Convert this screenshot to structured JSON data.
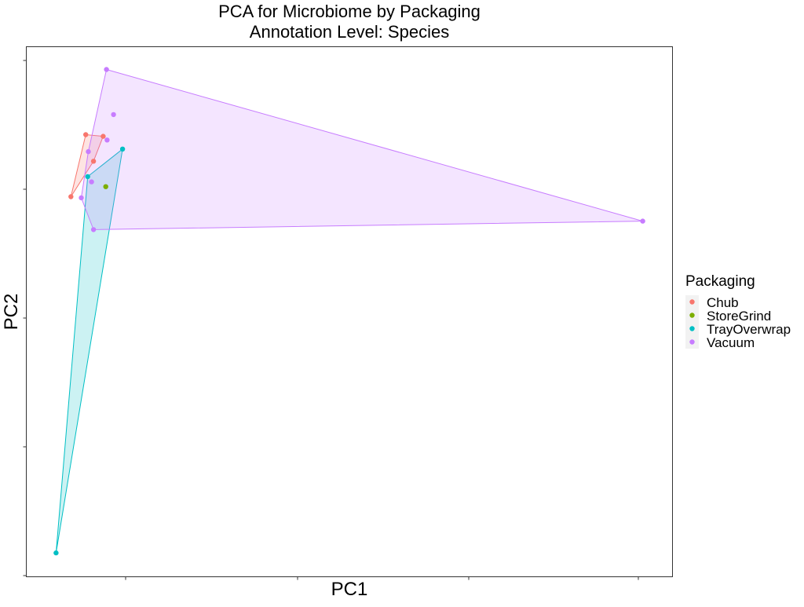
{
  "chart_data": {
    "type": "scatter",
    "title_line1": "PCA for Microbiome by Packaging",
    "title_line2": "Annotation Level: Species",
    "xlabel": "PC1",
    "ylabel": "PC2",
    "x_ticks_labels_shown": false,
    "y_ticks_labels_shown": false,
    "grid": false,
    "hulls": true,
    "legend": {
      "title": "Packaging",
      "placement": "right"
    },
    "xlim": [
      0,
      100
    ],
    "ylim": [
      0,
      100
    ],
    "series": [
      {
        "name": "Chub",
        "color": "#F8766D",
        "points": [
          {
            "x": 6.9,
            "y": 71.7
          },
          {
            "x": 9.2,
            "y": 83.4
          },
          {
            "x": 11.9,
            "y": 83.1
          },
          {
            "x": 10.4,
            "y": 78.4
          }
        ]
      },
      {
        "name": "StoreGrind",
        "color": "#7CAE00",
        "points": [
          {
            "x": 12.3,
            "y": 73.6
          }
        ]
      },
      {
        "name": "TrayOverwrap",
        "color": "#00BFC4",
        "points": [
          {
            "x": 4.6,
            "y": 4.5
          },
          {
            "x": 9.5,
            "y": 75.5
          },
          {
            "x": 14.9,
            "y": 80.7
          }
        ]
      },
      {
        "name": "Vacuum",
        "color": "#C77CFF",
        "points": [
          {
            "x": 12.4,
            "y": 95.7
          },
          {
            "x": 13.5,
            "y": 87.2
          },
          {
            "x": 12.5,
            "y": 82.4
          },
          {
            "x": 9.6,
            "y": 80.2
          },
          {
            "x": 10.1,
            "y": 74.5
          },
          {
            "x": 8.5,
            "y": 71.5
          },
          {
            "x": 10.4,
            "y": 65.5
          },
          {
            "x": 95.4,
            "y": 67.1
          }
        ]
      }
    ]
  }
}
